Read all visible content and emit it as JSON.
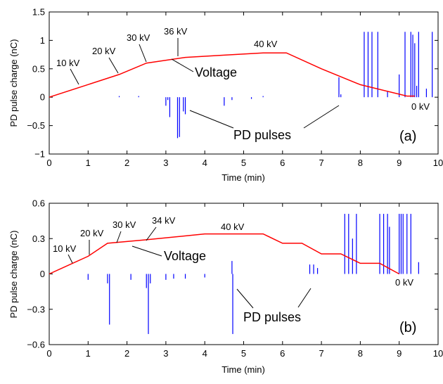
{
  "chart_data": [
    {
      "panel": "(a)",
      "type": "line",
      "xlabel": "Time (min)",
      "ylabel": "PD pulse charge (nC)",
      "xlim": [
        0,
        10
      ],
      "ylim": [
        -1,
        1.5
      ],
      "xticks": [
        "0",
        "1",
        "2",
        "3",
        "4",
        "5",
        "6",
        "7",
        "8",
        "9",
        "10"
      ],
      "yticks": [
        "1.5",
        "1",
        "0.5",
        "0",
        "−0.5",
        "−1"
      ],
      "ytick_values": [
        1.5,
        1,
        0.5,
        0,
        -0.5,
        -1
      ],
      "voltage_color": "#ff0000",
      "pulse_color": "#0000ff",
      "series": [
        {
          "name": "Voltage",
          "x": [
            0,
            1.8,
            2.5,
            3.5,
            4.5,
            5.5,
            6.1,
            7.0,
            8.0,
            9.2,
            9.4
          ],
          "y": [
            0,
            0.4,
            0.6,
            0.7,
            0.74,
            0.78,
            0.78,
            0.5,
            0.22,
            0.02,
            0.02
          ]
        },
        {
          "name": "PD pulses",
          "x": [
            1.8,
            2.3,
            3.0,
            3.05,
            3.1,
            3.3,
            3.35,
            3.45,
            3.5,
            4.5,
            4.7,
            5.2,
            5.5,
            7.45,
            7.5,
            8.1,
            8.2,
            8.3,
            8.45,
            8.7,
            9.0,
            9.15,
            9.3,
            9.35,
            9.4,
            9.45,
            9.5,
            9.7,
            9.85
          ],
          "y": [
            0.02,
            0.02,
            -0.15,
            -0.05,
            -0.35,
            -0.72,
            -0.7,
            -0.25,
            -0.3,
            -0.15,
            -0.05,
            -0.03,
            0.02,
            0.35,
            0.05,
            1.15,
            1.15,
            1.15,
            1.15,
            0.1,
            0.4,
            1.15,
            1.15,
            1.1,
            0.95,
            0.2,
            1.15,
            0.15,
            1.15
          ]
        }
      ],
      "annotations": [
        "10 kV",
        "20 kV",
        "30 kV",
        "36 kV",
        "40 kV",
        "0 kV",
        "Voltage",
        "PD pulses"
      ]
    },
    {
      "panel": "(b)",
      "type": "line",
      "xlabel": "Time (min)",
      "ylabel": "PD pulse charge (nC)",
      "xlim": [
        0,
        10
      ],
      "ylim": [
        -0.6,
        0.6
      ],
      "xticks": [
        "0",
        "1",
        "2",
        "3",
        "4",
        "5",
        "6",
        "7",
        "8",
        "9",
        "10"
      ],
      "yticks": [
        "0.6",
        "0.3",
        "0",
        "−0.3",
        "−0.6"
      ],
      "ytick_values": [
        0.6,
        0.3,
        0,
        -0.3,
        -0.6
      ],
      "voltage_color": "#ff0000",
      "pulse_color": "#0000ff",
      "series": [
        {
          "name": "Voltage",
          "x": [
            0,
            1.0,
            1.5,
            2.5,
            4.0,
            5.5,
            6.0,
            6.5,
            7.0,
            7.5,
            8.0,
            8.5,
            9.0
          ],
          "y": [
            0,
            0.15,
            0.26,
            0.29,
            0.34,
            0.34,
            0.26,
            0.26,
            0.17,
            0.17,
            0.09,
            0.09,
            0.0
          ]
        },
        {
          "name": "PD pulses",
          "x": [
            1.0,
            1.5,
            1.55,
            2.1,
            2.5,
            2.55,
            2.6,
            3.0,
            3.2,
            3.5,
            4.0,
            4.7,
            4.72,
            6.7,
            6.8,
            6.9,
            7.6,
            7.7,
            7.8,
            7.9,
            8.5,
            8.6,
            8.7,
            8.75,
            9.0,
            9.05,
            9.1,
            9.2,
            9.3,
            9.5
          ],
          "y": [
            -0.05,
            -0.08,
            -0.43,
            -0.05,
            -0.12,
            -0.51,
            -0.08,
            -0.05,
            -0.04,
            -0.04,
            -0.03,
            0.11,
            -0.51,
            0.08,
            0.08,
            0.05,
            0.51,
            0.51,
            0.3,
            0.51,
            0.51,
            0.51,
            0.51,
            0.4,
            0.51,
            0.51,
            0.51,
            0.51,
            0.51,
            0.1
          ]
        }
      ],
      "annotations": [
        "10 kV",
        "20 kV",
        "30 kV",
        "34 kV",
        "40 kV",
        "0 kV",
        "Voltage",
        "PD pulses"
      ]
    }
  ]
}
